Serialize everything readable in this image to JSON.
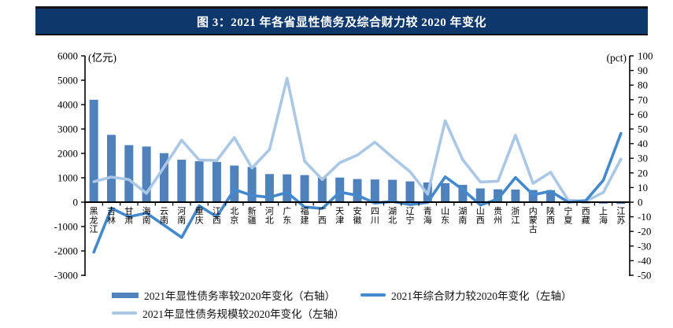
{
  "title": "图 3：2021 年各省显性债务及综合财力较 2020 年变化",
  "colors": {
    "title_bg": "#0e386b",
    "bar": "#4f81bd",
    "line_caili": "#4389cb",
    "line_guimo": "#abc7e6",
    "axis": "#000000"
  },
  "legend": {
    "items": [
      {
        "label": "2021年显性债务率较2020年变化（右轴）",
        "swatch": "bar"
      },
      {
        "label": "2021年综合财力较2020年变化（左轴）",
        "swatch": "line-medium"
      },
      {
        "label": "2021年显性债务规模较2020年变化（左轴）",
        "swatch": "line-light"
      }
    ]
  },
  "chart_data": {
    "type": "combo",
    "title": "图 3：2021 年各省显性债务及综合财力较 2020 年变化",
    "categories": [
      "黑龙江",
      "吉林",
      "甘肃",
      "海南",
      "云南",
      "河南",
      "重庆",
      "江西",
      "北京",
      "新疆",
      "河北",
      "广东",
      "福建",
      "广西",
      "天津",
      "安徽",
      "四川",
      "湖北",
      "辽宁",
      "青海",
      "山东",
      "湖南",
      "山西",
      "贵州",
      "浙江",
      "内蒙古",
      "陕西",
      "宁夏",
      "西藏",
      "上海",
      "江苏"
    ],
    "series": [
      {
        "name": "2021年显性债务率较2020年变化（右轴）",
        "type": "bar",
        "axis": "right",
        "values": [
          70,
          46,
          39,
          38,
          33.5,
          29,
          28,
          27.5,
          25,
          24,
          19.2,
          19,
          18.5,
          17,
          16.8,
          15.8,
          15.5,
          15.3,
          14.2,
          13.5,
          13,
          11.8,
          9.4,
          8.8,
          8.6,
          8.3,
          8.2,
          1.8,
          -0.8,
          -1,
          -1.2
        ]
      },
      {
        "name": "2021年综合财力较2020年变化（左轴）",
        "type": "line",
        "axis": "left",
        "values": [
          -2050,
          -250,
          -600,
          -450,
          -950,
          -1450,
          -150,
          -600,
          520,
          270,
          200,
          400,
          -200,
          -260,
          410,
          280,
          -40,
          30,
          -100,
          -10,
          1040,
          520,
          -120,
          130,
          1010,
          300,
          450,
          0,
          60,
          900,
          2820
        ]
      },
      {
        "name": "2021年显性债务规模较2020年变化（左轴）",
        "type": "line",
        "axis": "left",
        "values": [
          840,
          1030,
          925,
          360,
          1450,
          2540,
          1730,
          1710,
          2650,
          1400,
          2160,
          5080,
          1680,
          930,
          1620,
          1930,
          2460,
          1840,
          1250,
          330,
          3340,
          1740,
          825,
          860,
          2750,
          770,
          1225,
          75,
          40,
          400,
          1760
        ]
      }
    ],
    "left_axis": {
      "unit": "(亿元)",
      "min": -3000,
      "max": 6000,
      "step": 1000,
      "tick_labels": [
        "6000",
        "5000",
        "4000",
        "3000",
        "2000",
        "1000",
        "0",
        "-1000",
        "-2000",
        "-3000"
      ]
    },
    "right_axis": {
      "unit": "(pct)",
      "min": -50,
      "max": 100,
      "step": 10,
      "tick_labels": [
        "100",
        "90",
        "80",
        "70",
        "60",
        "50",
        "40",
        "30",
        "20",
        "10",
        "0",
        "-10",
        "-20",
        "-30",
        "-40",
        "-50"
      ]
    },
    "grid": false,
    "legend_position": "bottom"
  }
}
